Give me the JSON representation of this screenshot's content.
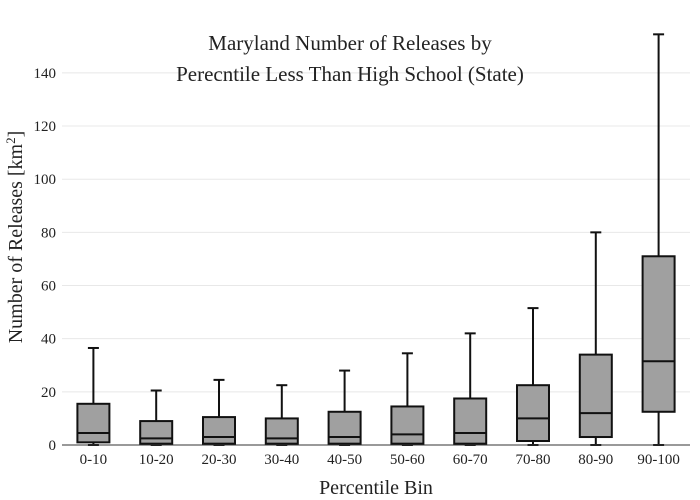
{
  "chart_data": {
    "type": "box",
    "title_line1": "Maryland Number of Releases by",
    "title_line2": "Perecntile Less Than High School (State)",
    "xlabel": "Percentile Bin",
    "ylabel_main": "Number of Releases  [km",
    "ylabel_sup": "2",
    "ylabel_close": "]",
    "ylim": [
      0,
      155
    ],
    "yticks": [
      0,
      20,
      40,
      60,
      80,
      100,
      120,
      140
    ],
    "grid": true,
    "categories": [
      "0-10",
      "10-20",
      "20-30",
      "30-40",
      "40-50",
      "50-60",
      "60-70",
      "70-80",
      "80-90",
      "90-100"
    ],
    "boxes": [
      {
        "min": 0,
        "q1": 1,
        "median": 4.5,
        "q3": 15.5,
        "max": 36.5
      },
      {
        "min": 0,
        "q1": 0.5,
        "median": 2.5,
        "q3": 9,
        "max": 20.5
      },
      {
        "min": 0,
        "q1": 0.5,
        "median": 3,
        "q3": 10.5,
        "max": 24.5
      },
      {
        "min": 0,
        "q1": 0.5,
        "median": 2.5,
        "q3": 10,
        "max": 22.5
      },
      {
        "min": 0,
        "q1": 0.5,
        "median": 3,
        "q3": 12.5,
        "max": 28
      },
      {
        "min": 0,
        "q1": 0.5,
        "median": 4,
        "q3": 14.5,
        "max": 34.5
      },
      {
        "min": 0,
        "q1": 0.5,
        "median": 4.5,
        "q3": 17.5,
        "max": 42
      },
      {
        "min": 0,
        "q1": 1.5,
        "median": 10,
        "q3": 22.5,
        "max": 51.5
      },
      {
        "min": 0,
        "q1": 3,
        "median": 12,
        "q3": 34,
        "max": 80
      },
      {
        "min": 0,
        "q1": 12.5,
        "median": 31.5,
        "q3": 71,
        "max": 154.5
      }
    ]
  }
}
